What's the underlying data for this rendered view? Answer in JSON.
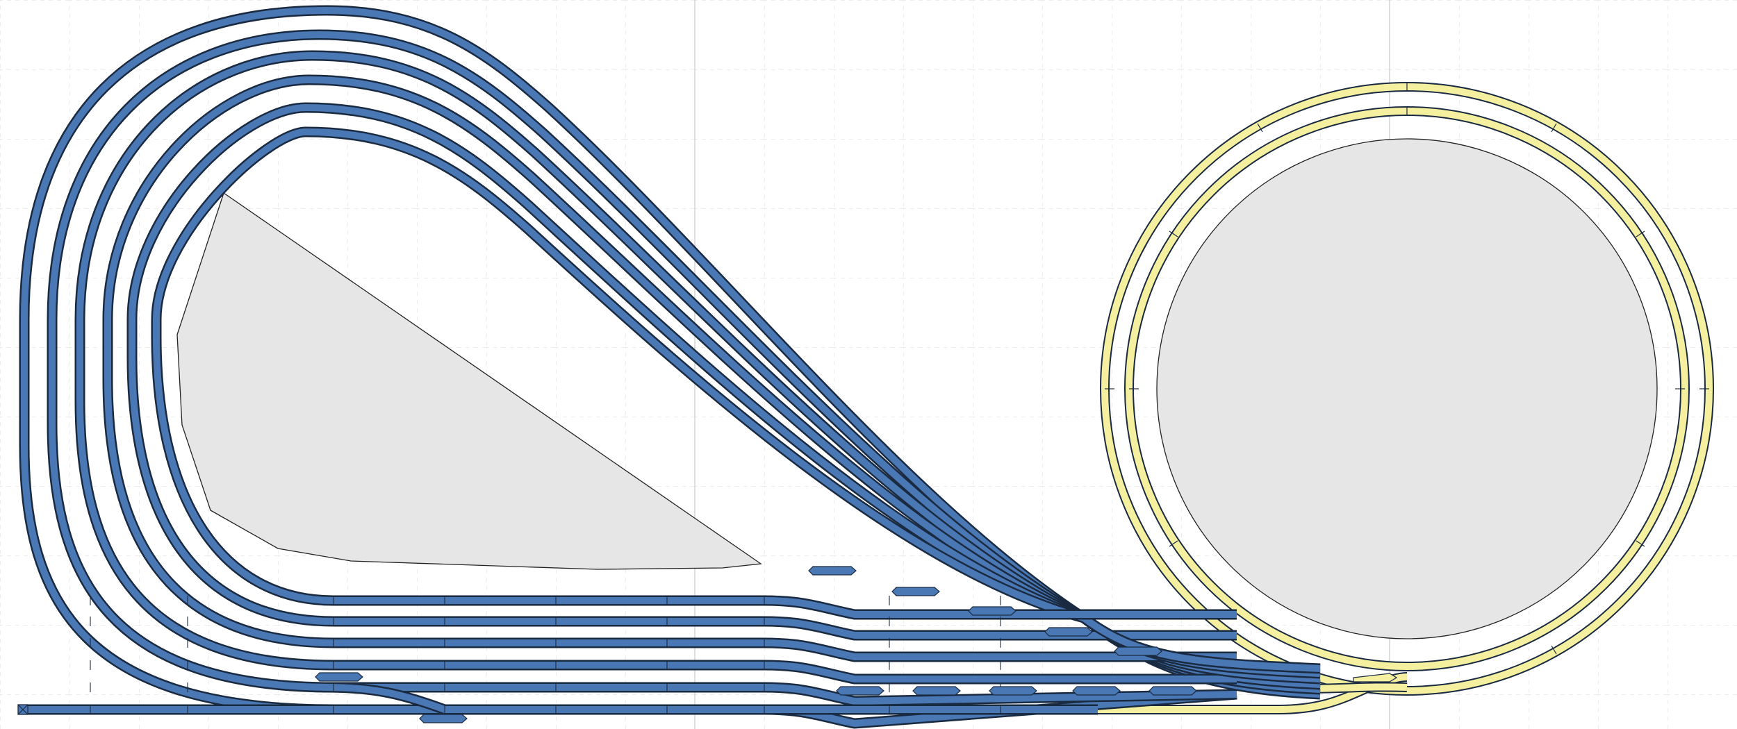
{
  "colors": {
    "background": "#ffffff",
    "grid": "#dcdcdc",
    "track_blue": "#4a78b4",
    "track_yellow": "#f5f0a0",
    "track_outline": "#1a2a40",
    "area_fill": "#e6e6e6",
    "area_outline": "#222222"
  },
  "layers": {
    "blue_tracks": "track-plan-blue-layer",
    "yellow_tracks": "track-plan-yellow-layer"
  },
  "elements": {
    "buffer_stop": "buffer-stop-icon",
    "turnout": "turnout-icon"
  }
}
